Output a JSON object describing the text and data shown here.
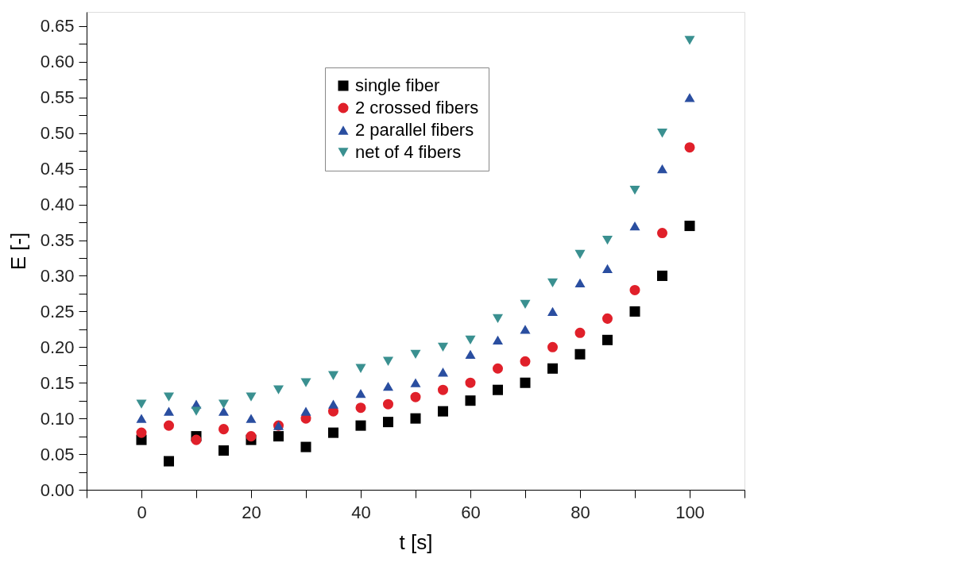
{
  "chart_data": {
    "type": "scatter",
    "xlabel": "t [s]",
    "ylabel": "E [-]",
    "x": [
      0,
      5,
      10,
      15,
      20,
      25,
      30,
      35,
      40,
      45,
      50,
      55,
      60,
      65,
      70,
      75,
      80,
      85,
      90,
      95,
      100
    ],
    "xlim": [
      -10,
      110
    ],
    "xticks": [
      {
        "value": -10,
        "label": null
      },
      0,
      {
        "value": 10,
        "label": null
      },
      20,
      {
        "value": 30,
        "label": null
      },
      40,
      {
        "value": 50,
        "label": null
      },
      60,
      {
        "value": 70,
        "label": null
      },
      80,
      {
        "value": 90,
        "label": null
      },
      100,
      {
        "value": 110,
        "label": null
      }
    ],
    "ylim": [
      0,
      0.67
    ],
    "yticks": [
      {
        "value": 0,
        "label": "0.00"
      },
      {
        "value": 0.025,
        "label": null
      },
      {
        "value": 0.05,
        "label": "0.05"
      },
      {
        "value": 0.075,
        "label": null
      },
      {
        "value": 0.1,
        "label": "0.10"
      },
      {
        "value": 0.125,
        "label": null
      },
      {
        "value": 0.15,
        "label": "0.15"
      },
      {
        "value": 0.175,
        "label": null
      },
      {
        "value": 0.2,
        "label": "0.20"
      },
      {
        "value": 0.225,
        "label": null
      },
      {
        "value": 0.25,
        "label": "0.25"
      },
      {
        "value": 0.275,
        "label": null
      },
      {
        "value": 0.3,
        "label": "0.30"
      },
      {
        "value": 0.325,
        "label": null
      },
      {
        "value": 0.35,
        "label": "0.35"
      },
      {
        "value": 0.375,
        "label": null
      },
      {
        "value": 0.4,
        "label": "0.40"
      },
      {
        "value": 0.425,
        "label": null
      },
      {
        "value": 0.45,
        "label": "0.45"
      },
      {
        "value": 0.475,
        "label": null
      },
      {
        "value": 0.5,
        "label": "0.50"
      },
      {
        "value": 0.525,
        "label": null
      },
      {
        "value": 0.55,
        "label": "0.55"
      },
      {
        "value": 0.575,
        "label": null
      },
      {
        "value": 0.6,
        "label": "0.60"
      },
      {
        "value": 0.625,
        "label": null
      },
      {
        "value": 0.65,
        "label": "0.65"
      }
    ],
    "grid": false,
    "legend": "top",
    "series": [
      {
        "name": "single fiber",
        "color": "#000000",
        "marker": "square",
        "values": [
          0.07,
          0.04,
          0.075,
          0.055,
          0.07,
          0.075,
          0.06,
          0.08,
          0.09,
          0.095,
          0.1,
          0.11,
          0.125,
          0.14,
          0.15,
          0.17,
          0.19,
          0.21,
          0.25,
          0.3,
          0.37
        ]
      },
      {
        "name": "2 crossed fibers",
        "color": "#e0202a",
        "marker": "circle",
        "values": [
          0.08,
          0.09,
          0.07,
          0.085,
          0.075,
          0.09,
          0.1,
          0.11,
          0.115,
          0.12,
          0.13,
          0.14,
          0.15,
          0.17,
          0.18,
          0.2,
          0.22,
          0.24,
          0.28,
          0.36,
          0.48
        ]
      },
      {
        "name": "2 parallel fibers",
        "color": "#2a4ea0",
        "marker": "triangle",
        "values": [
          0.1,
          0.11,
          0.12,
          0.11,
          0.1,
          0.09,
          0.11,
          0.12,
          0.135,
          0.145,
          0.15,
          0.165,
          0.19,
          0.21,
          0.225,
          0.25,
          0.29,
          0.31,
          0.37,
          0.45,
          0.55
        ]
      },
      {
        "name": "net of 4 fibers",
        "color": "#3a9090",
        "marker": "triangle-down",
        "values": [
          0.12,
          0.13,
          0.11,
          0.12,
          0.13,
          0.14,
          0.15,
          0.16,
          0.17,
          0.18,
          0.19,
          0.2,
          0.21,
          0.24,
          0.26,
          0.29,
          0.33,
          0.35,
          0.42,
          0.5,
          0.63
        ]
      }
    ]
  }
}
